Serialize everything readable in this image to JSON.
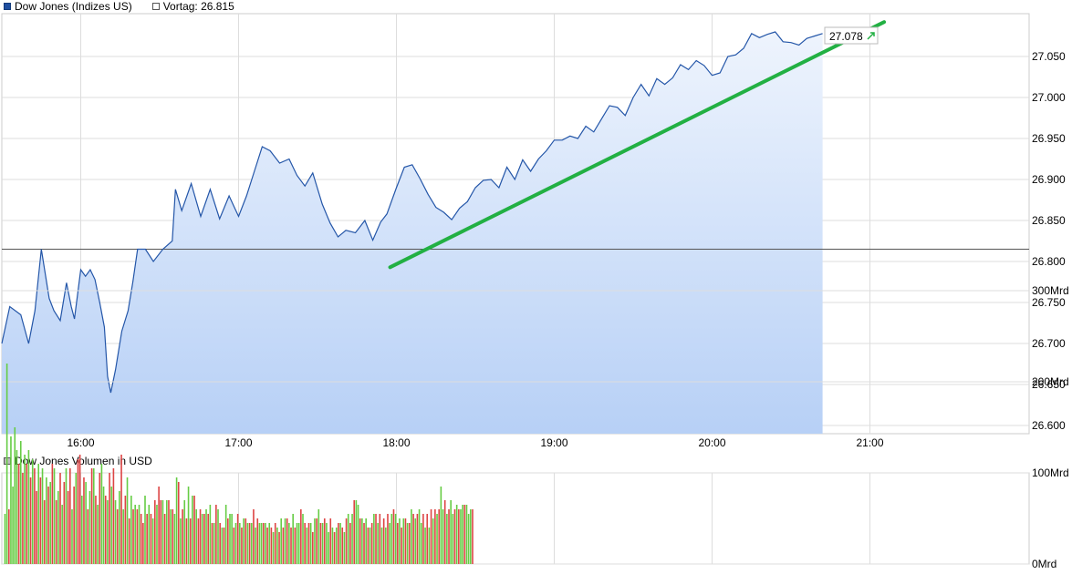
{
  "legend": {
    "series_label": "Dow Jones (Indizes US)",
    "prev_label": "Vortag: 26.815",
    "volume_label": "Dow Jones Volumen in USD"
  },
  "colors": {
    "line": "#2456a8",
    "fill_top": "#eef4fd",
    "fill_bottom": "#b7d0f6",
    "trend": "#22b043",
    "vol_up": "#66cc44",
    "vol_down": "#dd4444",
    "grid": "#dddddd"
  },
  "chart_data": [
    {
      "type": "line",
      "title": "Dow Jones (Indizes US)",
      "reference": {
        "label": "Vortag",
        "value": 26815
      },
      "last_value": {
        "label": "27.078",
        "value": 27078
      },
      "x_ticks": [
        "16:00",
        "17:00",
        "18:00",
        "19:00",
        "20:00",
        "21:00"
      ],
      "x_range_hours": [
        15.5,
        22.0
      ],
      "y_ticks": [
        "26.600",
        "26.650",
        "26.700",
        "26.750",
        "26.800",
        "26.850",
        "26.900",
        "26.950",
        "27.000",
        "27.050"
      ],
      "y_tick_values": [
        26600,
        26650,
        26700,
        26750,
        26800,
        26850,
        26900,
        26950,
        27000,
        27050
      ],
      "ylim": [
        26590,
        27090
      ],
      "grid": true,
      "series": [
        {
          "x": [
            15.5,
            15.55,
            15.62,
            15.67,
            15.71,
            15.75,
            15.8,
            15.83,
            15.87,
            15.91,
            15.94,
            15.96,
            16.0,
            16.03,
            16.06,
            16.09,
            16.12,
            16.15,
            16.17,
            16.19,
            16.22,
            16.26,
            16.3,
            16.33,
            16.36,
            16.41,
            16.46,
            16.52,
            16.58,
            16.6,
            16.64,
            16.7,
            16.76,
            16.82,
            16.88,
            16.94,
            17.0,
            17.05,
            17.1,
            17.15,
            17.2,
            17.26,
            17.32,
            17.37,
            17.42,
            17.47,
            17.53,
            17.58,
            17.63,
            17.68,
            17.74,
            17.8,
            17.85,
            17.9,
            17.94,
            18.0,
            18.05,
            18.1,
            18.15,
            18.2,
            18.25,
            18.3,
            18.35,
            18.4,
            18.45,
            18.5,
            18.55,
            18.6,
            18.65,
            18.7,
            18.75,
            18.8,
            18.85,
            18.9,
            18.95,
            19.0,
            19.05,
            19.1,
            19.15,
            19.2,
            19.25,
            19.3,
            19.35,
            19.4,
            19.45,
            19.5,
            19.55,
            19.6,
            19.65,
            19.7,
            19.75,
            19.8,
            19.85,
            19.9,
            19.95,
            20.0,
            20.05,
            20.1,
            20.15,
            20.2,
            20.25,
            20.3,
            20.35,
            20.4,
            20.45,
            20.5,
            20.55,
            20.6,
            20.65,
            20.7
          ],
          "y": [
            26700,
            26745,
            26735,
            26700,
            26740,
            26815,
            26755,
            26740,
            26728,
            26774,
            26745,
            26730,
            26790,
            26782,
            26790,
            26778,
            26750,
            26720,
            26660,
            26640,
            26668,
            26715,
            26740,
            26775,
            26815,
            26815,
            26800,
            26815,
            26825,
            26888,
            26862,
            26895,
            26855,
            26888,
            26852,
            26880,
            26855,
            26880,
            26910,
            26940,
            26935,
            26920,
            26925,
            26905,
            26892,
            26908,
            26870,
            26847,
            26830,
            26838,
            26835,
            26850,
            26826,
            26848,
            26858,
            26890,
            26915,
            26918,
            26901,
            26882,
            26866,
            26860,
            26851,
            26865,
            26873,
            26890,
            26899,
            26900,
            26890,
            26915,
            26900,
            26924,
            26910,
            26925,
            26935,
            26948,
            26948,
            26953,
            26950,
            26965,
            26958,
            26974,
            26990,
            26988,
            26978,
            27000,
            27016,
            27002,
            27023,
            27016,
            27024,
            27040,
            27034,
            27045,
            27039,
            27027,
            27030,
            27050,
            27052,
            27060,
            27078,
            27073,
            27077,
            27080,
            27068,
            27067,
            27064,
            27072,
            27075,
            27078
          ]
        }
      ],
      "trendline": {
        "from": {
          "x": 17.96,
          "y": 26793
        },
        "to": {
          "x": 21.09,
          "y": 27092
        }
      }
    },
    {
      "type": "bar",
      "title": "Dow Jones Volumen in USD",
      "y_ticks": [
        "0Mrd",
        "100Mrd",
        "200Mrd",
        "300Mrd"
      ],
      "y_tick_values": [
        0,
        100,
        200,
        300
      ],
      "ylim": [
        0,
        300
      ],
      "grid": true,
      "x_range_hours": [
        15.5,
        22.0
      ],
      "x_start": 15.52,
      "x_step": 0.0125,
      "values": [
        55,
        220,
        60,
        140,
        85,
        150,
        125,
        110,
        135,
        100,
        120,
        110,
        125,
        95,
        115,
        105,
        80,
        110,
        95,
        105,
        70,
        95,
        85,
        90,
        110,
        105,
        70,
        80,
        100,
        65,
        90,
        105,
        80,
        105,
        60,
        85,
        100,
        115,
        120,
        75,
        95,
        90,
        60,
        80,
        105,
        105,
        75,
        65,
        100,
        110,
        85,
        75,
        70,
        100,
        85,
        105,
        70,
        60,
        80,
        120,
        60,
        75,
        95,
        50,
        75,
        60,
        65,
        60,
        65,
        55,
        45,
        75,
        55,
        65,
        55,
        50,
        70,
        65,
        85,
        70,
        70,
        55,
        70,
        70,
        60,
        60,
        55,
        95,
        90,
        50,
        60,
        70,
        50,
        85,
        50,
        75,
        75,
        60,
        50,
        60,
        55,
        55,
        60,
        55,
        65,
        45,
        45,
        65,
        60,
        45,
        40,
        40,
        65,
        50,
        55,
        55,
        40,
        45,
        55,
        45,
        40,
        50,
        50,
        45,
        45,
        45,
        60,
        40,
        50,
        45,
        45,
        45,
        45,
        40,
        45,
        40,
        35,
        45,
        40,
        35,
        50,
        40,
        50,
        50,
        45,
        40,
        55,
        40,
        45,
        45,
        60,
        55,
        45,
        40,
        45,
        45,
        35,
        50,
        50,
        60,
        45,
        45,
        50,
        45,
        35,
        50,
        40,
        35,
        40,
        45,
        45,
        40,
        35,
        50,
        55,
        45,
        55,
        70,
        70,
        65,
        50,
        50,
        45,
        50,
        40,
        40,
        45,
        55,
        55,
        45,
        55,
        40,
        50,
        40,
        55,
        45,
        55,
        60,
        55,
        45,
        50,
        40,
        50,
        50,
        45,
        45,
        60,
        55,
        50,
        55,
        60,
        45,
        55,
        40,
        55,
        40,
        60,
        50,
        60,
        55,
        60,
        85,
        60,
        70,
        55,
        60,
        70,
        55,
        60,
        65,
        60,
        60,
        65,
        65,
        65,
        55,
        60,
        60
      ],
      "up": [
        1,
        1,
        0,
        1,
        1,
        1,
        1,
        0,
        1,
        0,
        1,
        0,
        1,
        0,
        1,
        0,
        0,
        1,
        0,
        1,
        0,
        1,
        0,
        1,
        0,
        1,
        0,
        1,
        0,
        1,
        0,
        1,
        0,
        0,
        1,
        0,
        1,
        0,
        0,
        1,
        0,
        1,
        0,
        1,
        0,
        1,
        0,
        1,
        0,
        1,
        1,
        0,
        1,
        0,
        1,
        0,
        1,
        0,
        1,
        0,
        1,
        0,
        1,
        0,
        1,
        0,
        1,
        0,
        1,
        0,
        0,
        1,
        0,
        1,
        0,
        1,
        0,
        1,
        0,
        0,
        1,
        0,
        1,
        0,
        1,
        0,
        1,
        1,
        0,
        1,
        0,
        1,
        0,
        1,
        0,
        1,
        0,
        1,
        0,
        0,
        1,
        0,
        1,
        0,
        1,
        0,
        1,
        0,
        1,
        0,
        1,
        0,
        1,
        0,
        1,
        1,
        0,
        1,
        0,
        1,
        0,
        1,
        0,
        1,
        0,
        1,
        0,
        1,
        0,
        1,
        1,
        0,
        1,
        0,
        1,
        0,
        1,
        0,
        1,
        0,
        1,
        0,
        1,
        0,
        1,
        0,
        1,
        0,
        1,
        1,
        0,
        1,
        0,
        1,
        0,
        1,
        0,
        1,
        0,
        1,
        0,
        1,
        0,
        1,
        1,
        0,
        1,
        0,
        1,
        0,
        1,
        0,
        1,
        0,
        1,
        0,
        1,
        0,
        1,
        1,
        0,
        1,
        0,
        1,
        0,
        1,
        0,
        1,
        0,
        1,
        0,
        1,
        0,
        1,
        0,
        1,
        1,
        0,
        1,
        0,
        1,
        0,
        1,
        0,
        1,
        0,
        1,
        0,
        1,
        0,
        1,
        1,
        0,
        1,
        0,
        1,
        0,
        1,
        0,
        1,
        0,
        1,
        1,
        0,
        1,
        0,
        1,
        1,
        0,
        1,
        0,
        1,
        1,
        0,
        1,
        1,
        1,
        0,
        1,
        1,
        1,
        1
      ]
    }
  ]
}
